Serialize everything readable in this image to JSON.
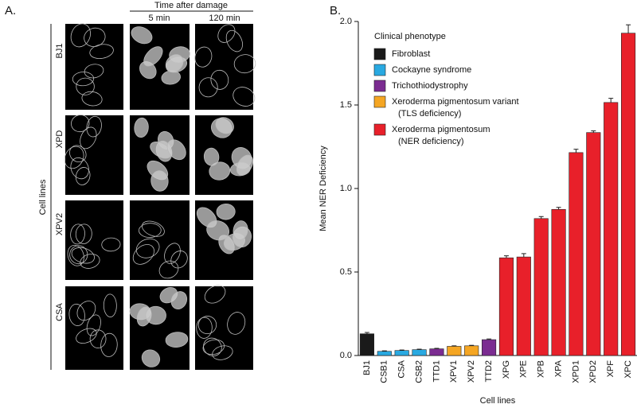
{
  "panel_a": {
    "label": "A.",
    "column_header": "Time after damage",
    "columns": [
      "5 min",
      "120 min"
    ],
    "rows": [
      "BJ1",
      "XPD",
      "XPV2",
      "CSA"
    ],
    "axis_label": "Cell lines"
  },
  "panel_b_label": "B.",
  "chart_data": {
    "type": "bar",
    "y_label": "Mean NER Deficiency",
    "x_label": "Cell lines",
    "legend_title": "Clinical phenotype",
    "categories": [
      "BJ1",
      "CSB1",
      "CSA",
      "CSB2",
      "TTD1",
      "XPV1",
      "XPV2",
      "TTD2",
      "XPG",
      "XPE",
      "XPB",
      "XPA",
      "XPD1",
      "XPD2",
      "XPF",
      "XPC"
    ],
    "series": [
      {
        "name": "Fibroblast",
        "color": "#1a1a1a",
        "values": [
          0.13,
          null,
          null,
          null,
          null,
          null,
          null,
          null,
          null,
          null,
          null,
          null,
          null,
          null,
          null,
          null
        ],
        "errors": [
          0.008,
          null,
          null,
          null,
          null,
          null,
          null,
          null,
          null,
          null,
          null,
          null,
          null,
          null,
          null,
          null
        ]
      },
      {
        "name": "Cockayne syndrome",
        "color": "#29a9e1",
        "values": [
          null,
          0.025,
          0.03,
          0.035,
          null,
          null,
          null,
          null,
          null,
          null,
          null,
          null,
          null,
          null,
          null,
          null
        ],
        "errors": [
          null,
          0.003,
          0.003,
          0.003,
          null,
          null,
          null,
          null,
          null,
          null,
          null,
          null,
          null,
          null,
          null,
          null
        ]
      },
      {
        "name": "Trichothiodystrophy",
        "color": "#7b2c91",
        "values": [
          null,
          null,
          null,
          null,
          0.04,
          null,
          null,
          0.095,
          null,
          null,
          null,
          null,
          null,
          null,
          null,
          null
        ],
        "errors": [
          null,
          null,
          null,
          null,
          0.003,
          null,
          null,
          0.004,
          null,
          null,
          null,
          null,
          null,
          null,
          null,
          null
        ]
      },
      {
        "name": "Xeroderma pigmentosum variant\n(TLS deficiency)",
        "color": "#f5a623",
        "values": [
          null,
          null,
          null,
          null,
          null,
          0.055,
          0.058,
          null,
          null,
          null,
          null,
          null,
          null,
          null,
          null,
          null
        ],
        "errors": [
          null,
          null,
          null,
          null,
          null,
          0.003,
          0.003,
          null,
          null,
          null,
          null,
          null,
          null,
          null,
          null,
          null
        ]
      },
      {
        "name": "Xeroderma pigmentosum\n(NER deficiency)",
        "color": "#e8202a",
        "values": [
          null,
          null,
          null,
          null,
          null,
          null,
          null,
          null,
          0.585,
          0.59,
          0.82,
          0.875,
          1.215,
          1.335,
          1.515,
          1.93
        ],
        "errors": [
          null,
          null,
          null,
          null,
          null,
          null,
          null,
          null,
          0.012,
          0.02,
          0.012,
          0.012,
          0.02,
          0.01,
          0.025,
          0.05
        ]
      }
    ],
    "ylim": [
      0,
      2.0
    ],
    "yticks": [
      {
        "value": 0,
        "label": "0.0"
      },
      0.5,
      {
        "value": 1,
        "label": "1.0"
      },
      1.5,
      {
        "value": 2,
        "label": "2.0"
      }
    ]
  }
}
